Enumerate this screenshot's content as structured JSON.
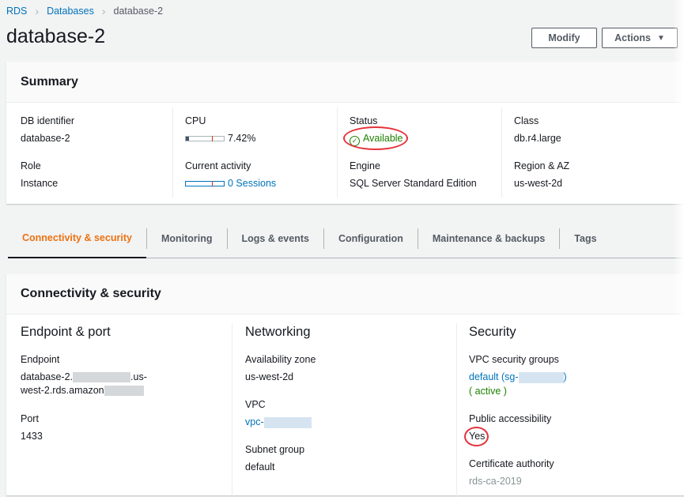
{
  "breadcrumb": [
    "RDS",
    "Databases",
    "database-2"
  ],
  "title": "database-2",
  "buttons": {
    "modify": "Modify",
    "actions": "Actions"
  },
  "summary": {
    "heading": "Summary",
    "db_identifier": {
      "label": "DB identifier",
      "value": "database-2"
    },
    "cpu": {
      "label": "CPU",
      "value": "7.42%",
      "percent": 7.42
    },
    "status": {
      "label": "Status",
      "value": "Available",
      "color": "#1d8102"
    },
    "class": {
      "label": "Class",
      "value": "db.r4.large"
    },
    "role": {
      "label": "Role",
      "value": "Instance"
    },
    "activity": {
      "label": "Current activity",
      "value": "0 Sessions"
    },
    "engine": {
      "label": "Engine",
      "value": "SQL Server Standard Edition"
    },
    "region": {
      "label": "Region & AZ",
      "value": "us-west-2d"
    }
  },
  "tabs": [
    "Connectivity & security",
    "Monitoring",
    "Logs & events",
    "Configuration",
    "Maintenance & backups",
    "Tags"
  ],
  "connectivity": {
    "heading": "Connectivity & security",
    "endpoint_port": {
      "heading": "Endpoint & port",
      "endpoint_label": "Endpoint",
      "endpoint_1a": "database-2.",
      "endpoint_1b": ".us-",
      "endpoint_2": "west-2.rds.amazon",
      "port_label": "Port",
      "port": "1433"
    },
    "networking": {
      "heading": "Networking",
      "az_label": "Availability zone",
      "az": "us-west-2d",
      "vpc_label": "VPC",
      "vpc": "vpc-",
      "subnet_label": "Subnet group",
      "subnet": "default"
    },
    "security": {
      "heading": "Security",
      "sg_label": "VPC security groups",
      "sg_a": "default (sg-",
      "sg_b": ")",
      "sg_status": "( active )",
      "public_label": "Public accessibility",
      "public": "Yes",
      "ca_label": "Certificate authority",
      "ca": "rds-ca-2019"
    }
  },
  "colors": {
    "accent": "#ec7211",
    "link": "#0073bb",
    "annotation": "#e5323b"
  }
}
